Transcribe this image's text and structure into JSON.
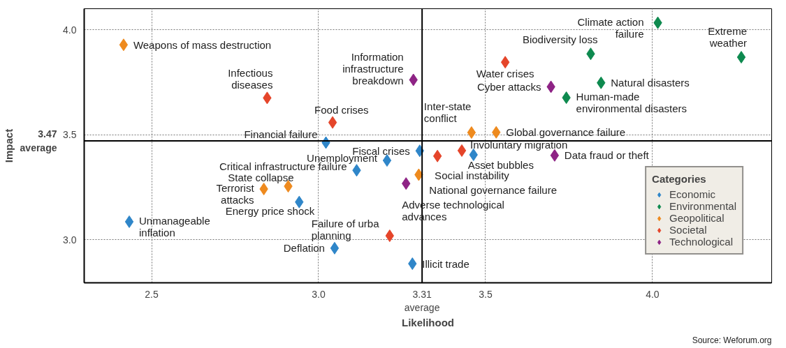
{
  "chart_data": {
    "type": "scatter",
    "xlabel": "Likelihood",
    "ylabel": "Impact",
    "xlim": [
      2.298,
      4.357
    ],
    "ylim": [
      2.794,
      4.1
    ],
    "xticks": [
      2.5,
      {
        "value": 3,
        "label": "3.0"
      },
      3.5,
      {
        "value": 4,
        "label": "4.0"
      }
    ],
    "yticks": [
      {
        "value": 3,
        "label": "3.0"
      },
      3.5,
      {
        "value": 4,
        "label": "4.0"
      }
    ],
    "grid": true,
    "marker": "diamond",
    "legend": "bottom right",
    "legend_title": "Categories",
    "series": [
      {
        "name": "Economic",
        "color": "#2f86c9",
        "x": [
          3.022,
          3.303,
          3.464,
          3.281,
          3.205,
          3.114,
          2.942,
          2.433,
          3.048
        ],
        "values": [
          3.462,
          3.423,
          3.404,
          2.885,
          3.377,
          3.33,
          3.179,
          3.085,
          2.959
        ]
      },
      {
        "name": "Environmental",
        "color": "#0e8a4f",
        "x": [
          4.016,
          3.815,
          4.266,
          3.846,
          3.742
        ],
        "values": [
          4.033,
          3.885,
          3.869,
          3.747,
          3.676
        ]
      },
      {
        "name": "Geopolitical",
        "color": "#ee8a1e",
        "x": [
          2.416,
          3.458,
          3.532,
          3.3,
          2.909,
          2.836
        ],
        "values": [
          3.928,
          3.51,
          3.511,
          3.309,
          3.254,
          3.241
        ]
      },
      {
        "name": "Societal",
        "color": "#e5452a",
        "x": [
          2.846,
          3.042,
          3.559,
          3.429,
          3.356,
          3.213
        ],
        "values": [
          3.675,
          3.558,
          3.845,
          3.424,
          3.398,
          3.018
        ]
      },
      {
        "name": "Technological",
        "color": "#8e2385",
        "x": [
          3.284,
          3.696,
          3.707,
          3.262
        ],
        "values": [
          3.761,
          3.728,
          3.401,
          3.267
        ]
      }
    ],
    "ref_lines": [
      {
        "axis": "x",
        "value": 3.31,
        "label": "3.31\naverage",
        "color": "#000000"
      },
      {
        "axis": "y",
        "value": 3.47,
        "label": "3.47\naverage",
        "color": "#000000"
      }
    ],
    "annotations": [
      {
        "text": "Weapons of mass destruction",
        "x": 2.416,
        "y": 3.928
      },
      {
        "text": "Infectious\ndiseases",
        "x": 2.846,
        "y": 3.675
      },
      {
        "text": "Information\ninfrastructure\nbreakdown",
        "x": 3.284,
        "y": 3.761
      },
      {
        "text": "Food crises",
        "x": 3.042,
        "y": 3.558
      },
      {
        "text": "Financial failure",
        "x": 3.022,
        "y": 3.462
      },
      {
        "text": "Fiscal crises",
        "x": 3.303,
        "y": 3.423
      },
      {
        "text": "Climate action\nfailure",
        "x": 4.016,
        "y": 4.033
      },
      {
        "text": "Biodiversity loss",
        "x": 3.815,
        "y": 3.885
      },
      {
        "text": "Extreme\nweather",
        "x": 4.266,
        "y": 3.869
      },
      {
        "text": "Water crises",
        "x": 3.559,
        "y": 3.845
      },
      {
        "text": "Cyber attacks",
        "x": 3.696,
        "y": 3.728
      },
      {
        "text": "Natural disasters",
        "x": 3.846,
        "y": 3.747
      },
      {
        "text": "Human-made\nenvironmental disasters",
        "x": 3.742,
        "y": 3.676
      },
      {
        "text": "Inter-state\nconflict",
        "x": 3.458,
        "y": 3.51
      },
      {
        "text": "Global governance failure",
        "x": 3.532,
        "y": 3.511
      },
      {
        "text": "Involuntary migration",
        "x": 3.429,
        "y": 3.424
      },
      {
        "text": "Social instability",
        "x": 3.356,
        "y": 3.398
      },
      {
        "text": "Asset bubbles",
        "x": 3.464,
        "y": 3.404
      },
      {
        "text": "Data fraud or theft",
        "x": 3.707,
        "y": 3.401
      },
      {
        "text": "National governance failure",
        "x": 3.3,
        "y": 3.309
      },
      {
        "text": "Adverse technological\nadvances",
        "x": 3.262,
        "y": 3.267
      },
      {
        "text": "Illicit trade",
        "x": 3.281,
        "y": 2.885
      },
      {
        "text": "Unemployment",
        "x": 3.205,
        "y": 3.377
      },
      {
        "text": "Critical infrastructure failure",
        "x": 3.114,
        "y": 3.33
      },
      {
        "text": "State collapse",
        "x": 2.909,
        "y": 3.254
      },
      {
        "text": "Terrorist\nattacks",
        "x": 2.836,
        "y": 3.241
      },
      {
        "text": "Energy price shock",
        "x": 2.942,
        "y": 3.179
      },
      {
        "text": "Unmanageable\ninflation",
        "x": 2.433,
        "y": 3.085
      },
      {
        "text": "Failure of urba\nplanning",
        "x": 3.213,
        "y": 3.018
      },
      {
        "text": "Deflation",
        "x": 3.048,
        "y": 2.959
      },
      "Source: Weforum.org"
    ]
  }
}
